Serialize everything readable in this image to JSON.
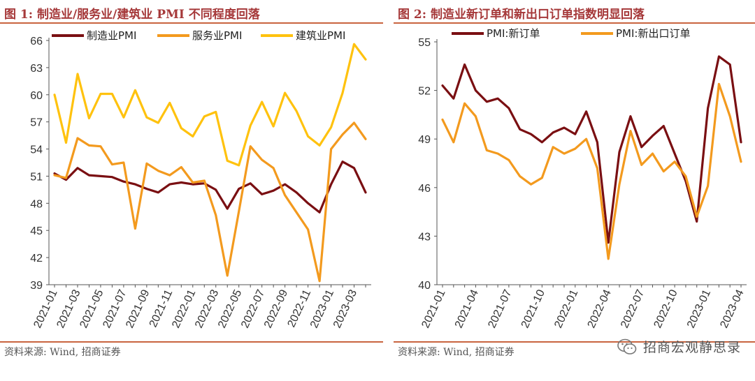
{
  "charts": [
    {
      "title": "图 1: 制造业/服务业/建筑业 PMI 不同程度回落",
      "source": "资料来源: Wind, 招商证券",
      "colors": [
        "#7a0f12",
        "#f39a1e",
        "#ffc20e"
      ]
    },
    {
      "title": "图 2: 制造业新订单和新出口订单指数明显回落",
      "source": "资料来源: Wind, 招商证券",
      "colors": [
        "#7a0f12",
        "#f39a1e"
      ]
    }
  ],
  "watermark": {
    "text": "招商宏观静思录",
    "icon": "wechat-icon"
  },
  "chart_data": [
    {
      "type": "line",
      "title": "",
      "xlabel": "",
      "ylabel": "",
      "ylim": [
        39,
        66
      ],
      "yticks": [
        39,
        42,
        45,
        48,
        51,
        54,
        57,
        60,
        63,
        66
      ],
      "x": [
        "2021-01",
        "2021-02",
        "2021-03",
        "2021-04",
        "2021-05",
        "2021-06",
        "2021-07",
        "2021-08",
        "2021-09",
        "2021-10",
        "2021-11",
        "2021-12",
        "2022-01",
        "2022-02",
        "2022-03",
        "2022-04",
        "2022-05",
        "2022-06",
        "2022-07",
        "2022-08",
        "2022-09",
        "2022-10",
        "2022-11",
        "2022-12",
        "2023-01",
        "2023-02",
        "2023-03",
        "2023-04"
      ],
      "xticks": [
        "2021-01",
        "2021-03",
        "2021-05",
        "2021-07",
        "2021-09",
        "2021-11",
        "2022-01",
        "2022-03",
        "2022-05",
        "2022-07",
        "2022-09",
        "2022-11",
        "2023-01",
        "2023-03"
      ],
      "legend": "top",
      "grid": false,
      "series": [
        {
          "name": "制造业PMI",
          "values": [
            51.3,
            50.6,
            51.9,
            51.1,
            51.0,
            50.9,
            50.4,
            50.1,
            49.6,
            49.2,
            50.1,
            50.3,
            50.1,
            50.2,
            49.5,
            47.4,
            49.6,
            50.2,
            49.0,
            49.4,
            50.1,
            49.2,
            48.0,
            47.0,
            50.1,
            52.6,
            51.9,
            49.2
          ]
        },
        {
          "name": "服务业PMI",
          "values": [
            51.1,
            50.8,
            55.2,
            54.4,
            54.3,
            52.3,
            52.5,
            45.2,
            52.4,
            51.6,
            51.1,
            52.0,
            50.3,
            50.5,
            46.7,
            40.0,
            47.1,
            54.3,
            52.8,
            51.9,
            48.9,
            47.0,
            45.1,
            39.4,
            54.0,
            55.6,
            56.9,
            55.1
          ]
        },
        {
          "name": "建筑业PMI",
          "values": [
            60.0,
            54.7,
            62.3,
            57.4,
            60.1,
            60.1,
            57.5,
            60.5,
            57.5,
            56.9,
            59.1,
            56.3,
            55.4,
            57.6,
            58.1,
            52.7,
            52.2,
            56.6,
            59.2,
            56.5,
            60.2,
            58.2,
            55.4,
            54.4,
            56.4,
            60.2,
            65.6,
            63.9
          ]
        }
      ]
    },
    {
      "type": "line",
      "title": "",
      "xlabel": "",
      "ylabel": "",
      "ylim": [
        40,
        55
      ],
      "yticks": [
        40,
        43,
        46,
        49,
        52,
        55
      ],
      "x": [
        "2021-01",
        "2021-02",
        "2021-03",
        "2021-04",
        "2021-05",
        "2021-06",
        "2021-07",
        "2021-08",
        "2021-09",
        "2021-10",
        "2021-11",
        "2021-12",
        "2022-01",
        "2022-02",
        "2022-03",
        "2022-04",
        "2022-05",
        "2022-06",
        "2022-07",
        "2022-08",
        "2022-09",
        "2022-10",
        "2022-11",
        "2022-12",
        "2023-01",
        "2023-02",
        "2023-03",
        "2023-04"
      ],
      "xticks": [
        "2021-01",
        "2021-04",
        "2021-07",
        "2021-10",
        "2022-01",
        "2022-04",
        "2022-07",
        "2022-10",
        "2023-01",
        "2023-04"
      ],
      "legend": "top",
      "grid": false,
      "series": [
        {
          "name": "PMI:新订单",
          "values": [
            52.3,
            51.5,
            53.6,
            52.0,
            51.3,
            51.5,
            50.9,
            49.6,
            49.3,
            48.8,
            49.4,
            49.7,
            49.3,
            50.7,
            48.8,
            42.6,
            48.2,
            50.4,
            48.5,
            49.2,
            49.8,
            48.1,
            46.4,
            43.9,
            50.9,
            54.1,
            53.6,
            48.8
          ]
        },
        {
          "name": "PMI:新出口订单",
          "values": [
            50.2,
            48.8,
            51.2,
            50.4,
            48.3,
            48.1,
            47.7,
            46.7,
            46.2,
            46.6,
            48.5,
            48.1,
            48.4,
            49.0,
            47.2,
            41.6,
            46.2,
            49.5,
            47.4,
            48.1,
            47.0,
            47.6,
            46.7,
            44.2,
            46.1,
            52.4,
            50.4,
            47.6
          ]
        }
      ]
    }
  ]
}
